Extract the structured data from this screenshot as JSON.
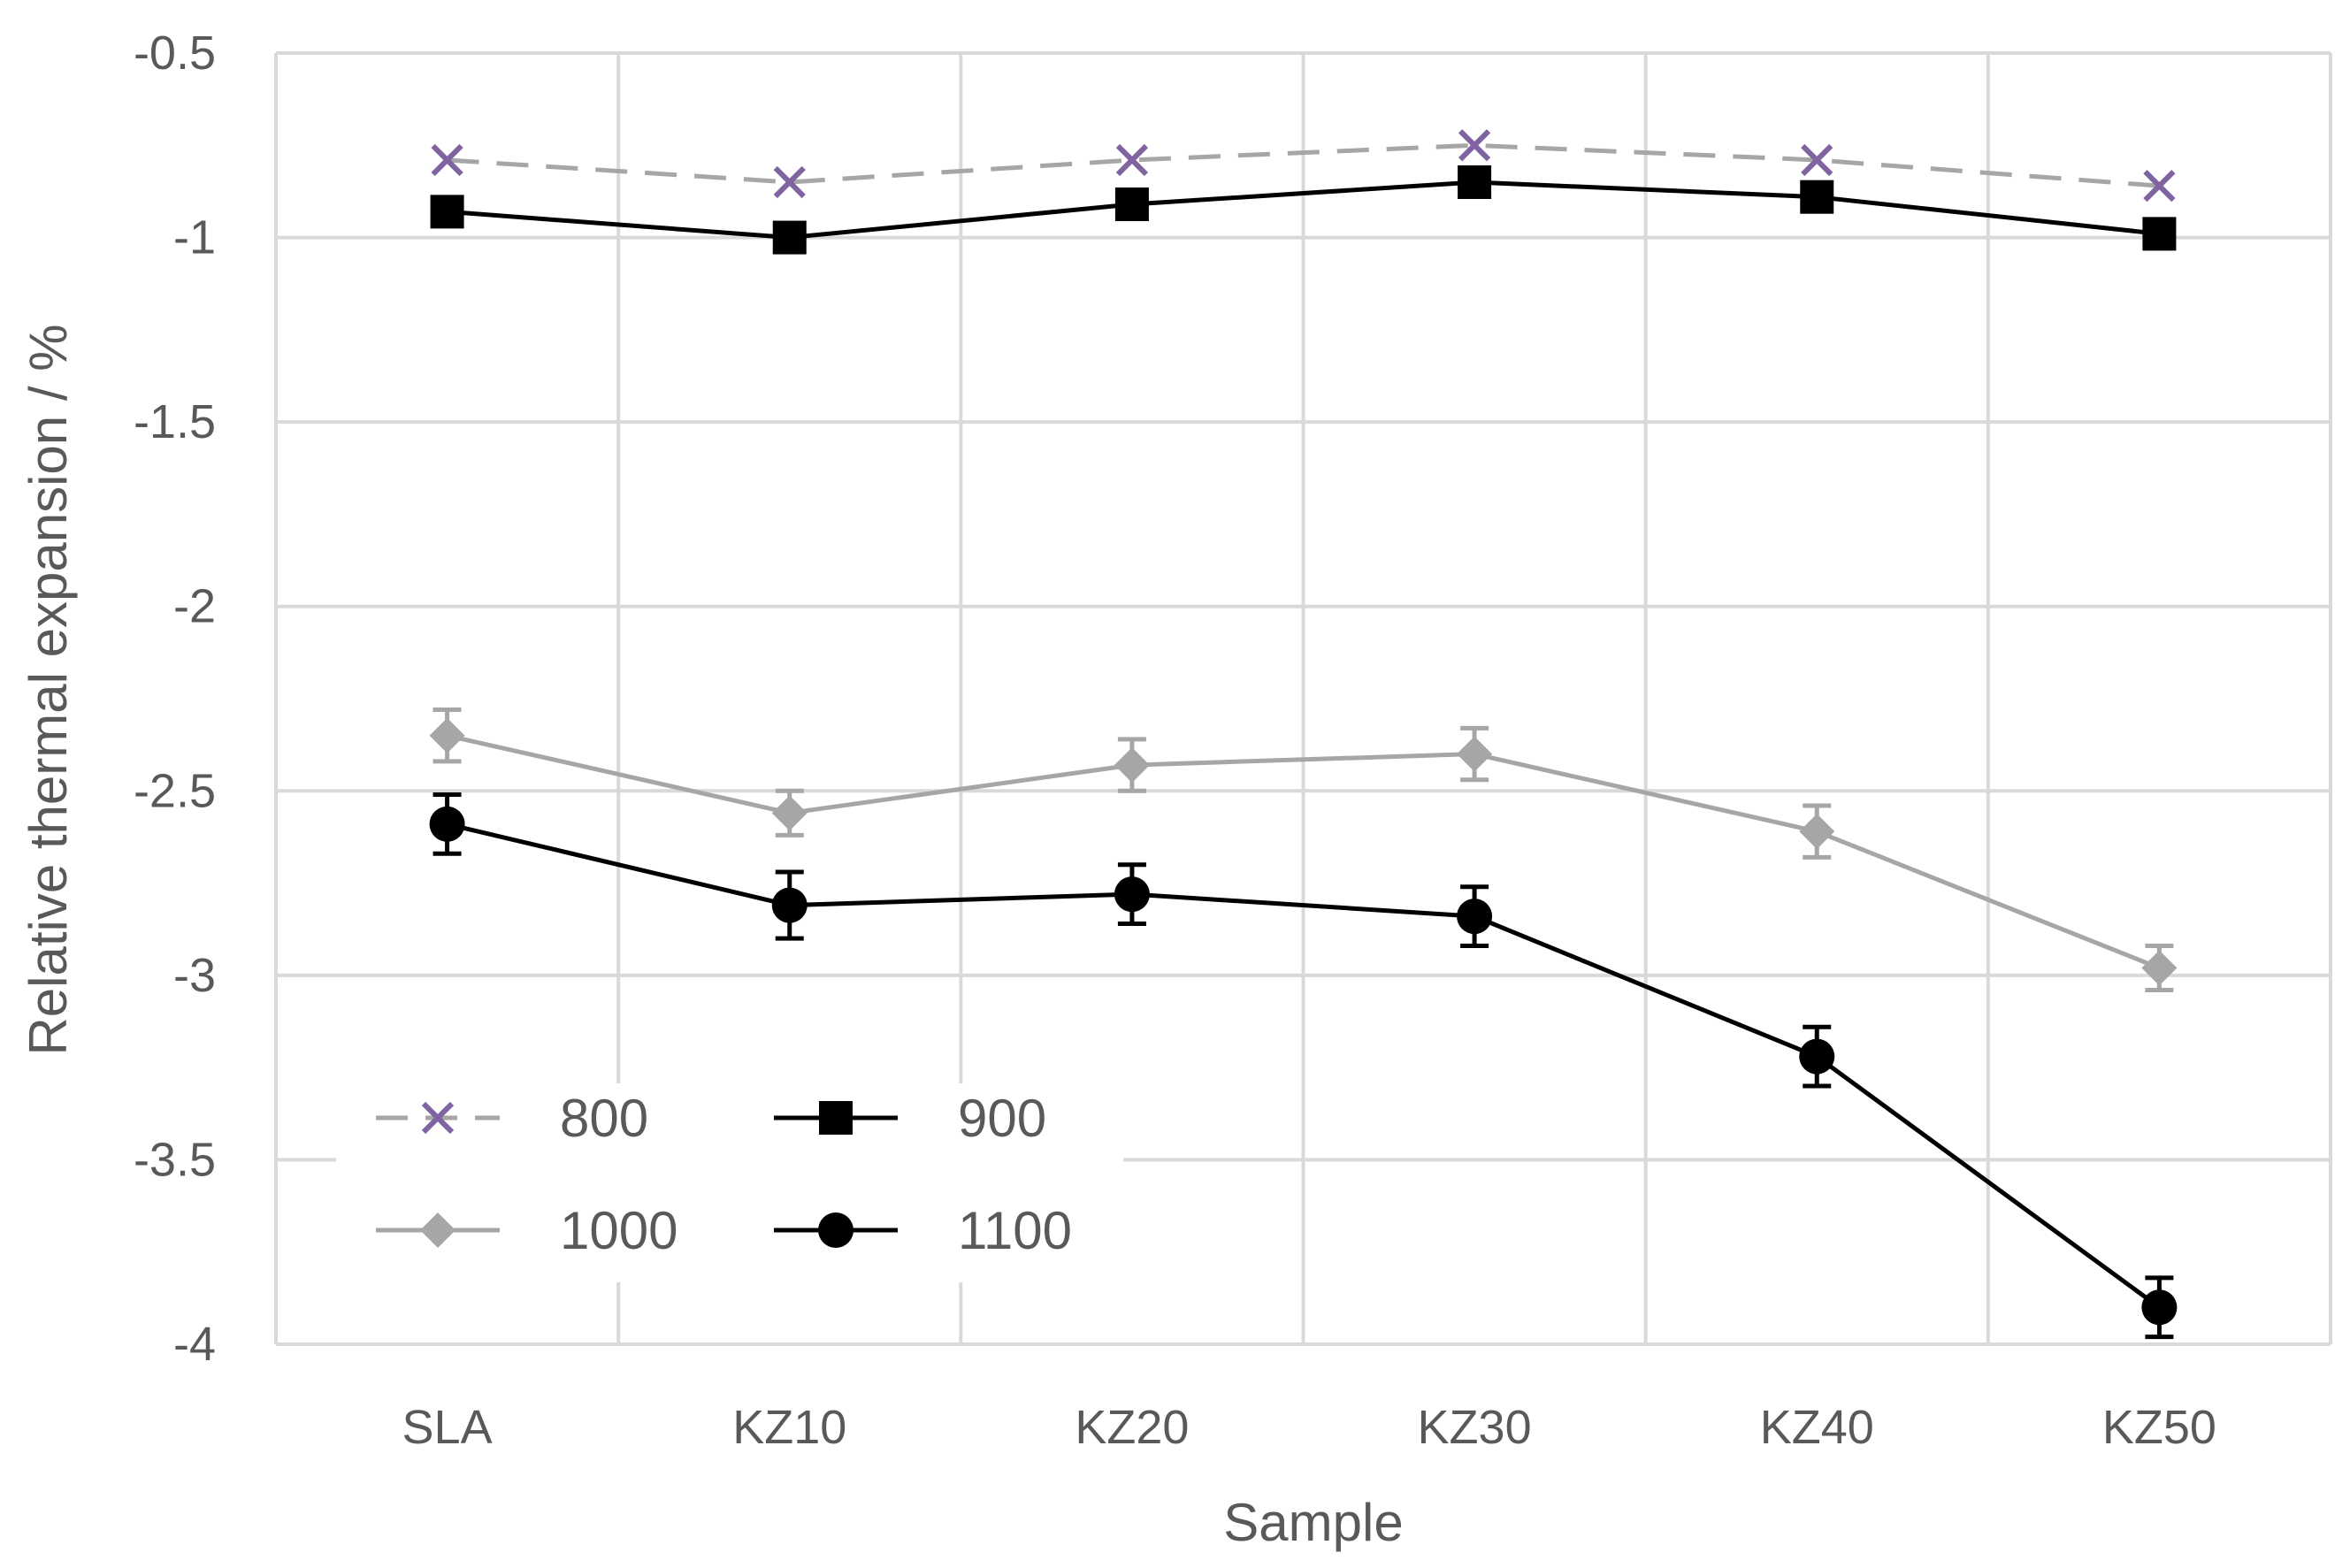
{
  "chart_data": {
    "type": "line",
    "title": "",
    "xlabel": "Sample",
    "ylabel": "Relative thermal expansion / %",
    "categories": [
      "SLA",
      "KZ10",
      "KZ20",
      "KZ30",
      "KZ40",
      "KZ50"
    ],
    "ylim": [
      -4,
      -0.5
    ],
    "yticks": [
      -0.5,
      -1,
      -1.5,
      -2,
      -2.5,
      -3,
      -3.5,
      -4
    ],
    "ytick_labels": [
      "-0.5",
      "-1",
      "-1.5",
      "-2",
      "-2.5",
      "-3",
      "-3.5",
      "-4"
    ],
    "grid": true,
    "legend_position": "bottom-left",
    "series": [
      {
        "name": "800",
        "values": [
          -0.79,
          -0.85,
          -0.79,
          -0.75,
          -0.79,
          -0.86
        ],
        "color": "#8064a2",
        "line_color": "#a6a6a6",
        "line_style": "dashed",
        "marker": "x",
        "error": null
      },
      {
        "name": "900",
        "values": [
          -0.93,
          -1.0,
          -0.91,
          -0.85,
          -0.89,
          -0.99
        ],
        "color": "#000000",
        "line_color": "#000000",
        "line_style": "solid",
        "marker": "square",
        "error": null
      },
      {
        "name": "1000",
        "values": [
          -2.35,
          -2.56,
          -2.43,
          -2.4,
          -2.61,
          -2.98
        ],
        "color": "#a6a6a6",
        "line_color": "#a6a6a6",
        "line_style": "solid",
        "marker": "diamond",
        "error": [
          0.07,
          0.06,
          0.07,
          0.07,
          0.07,
          0.06
        ]
      },
      {
        "name": "1100",
        "values": [
          -2.59,
          -2.81,
          -2.78,
          -2.84,
          -3.22,
          -3.9
        ],
        "color": "#000000",
        "line_color": "#000000",
        "line_style": "solid",
        "marker": "circle",
        "error": [
          0.08,
          0.09,
          0.08,
          0.08,
          0.08,
          0.08
        ]
      }
    ]
  }
}
